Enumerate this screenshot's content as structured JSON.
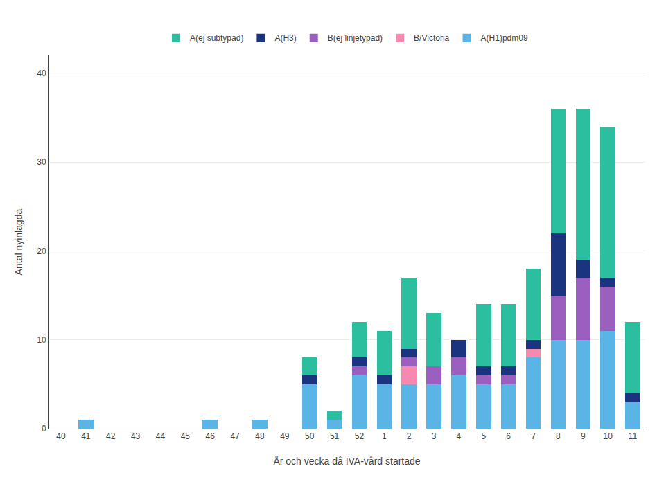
{
  "chart_data": {
    "type": "bar",
    "stacked": true,
    "categories": [
      "40",
      "41",
      "42",
      "43",
      "44",
      "45",
      "46",
      "47",
      "48",
      "49",
      "50",
      "51",
      "52",
      "1",
      "2",
      "3",
      "4",
      "5",
      "6",
      "7",
      "8",
      "9",
      "10",
      "11"
    ],
    "series": [
      {
        "name": "A(H1)pdm09",
        "color": "#5ab4e5",
        "values": [
          0,
          1,
          0,
          0,
          0,
          0,
          1,
          0,
          1,
          0,
          5,
          1,
          6,
          5,
          5,
          5,
          6,
          5,
          5,
          8,
          10,
          10,
          11,
          3
        ]
      },
      {
        "name": "B/Victoria",
        "color": "#f589b0",
        "values": [
          0,
          0,
          0,
          0,
          0,
          0,
          0,
          0,
          0,
          0,
          0,
          0,
          0,
          0,
          2,
          0,
          0,
          0,
          0,
          1,
          0,
          0,
          0,
          0
        ]
      },
      {
        "name": "B(ej linjetypad)",
        "color": "#9b5fc0",
        "values": [
          0,
          0,
          0,
          0,
          0,
          0,
          0,
          0,
          0,
          0,
          0,
          0,
          1,
          0,
          1,
          2,
          2,
          1,
          1,
          0,
          5,
          7,
          5,
          0
        ]
      },
      {
        "name": "A(H3)",
        "color": "#1a3480",
        "values": [
          0,
          0,
          0,
          0,
          0,
          0,
          0,
          0,
          0,
          0,
          1,
          0,
          1,
          1,
          1,
          0,
          2,
          1,
          1,
          1,
          7,
          2,
          1,
          1
        ]
      },
      {
        "name": "A(ej subtypad)",
        "color": "#2bbfa0",
        "values": [
          0,
          0,
          0,
          0,
          0,
          0,
          0,
          0,
          0,
          0,
          2,
          1,
          4,
          5,
          8,
          6,
          0,
          7,
          7,
          8,
          14,
          17,
          17,
          8
        ]
      }
    ],
    "xlabel": "År och vecka då IVA-vård startade",
    "ylabel": "Antal nyinlagda",
    "ylim": [
      0,
      42
    ],
    "yticks": [
      0,
      10,
      20,
      30,
      40
    ],
    "grid": true,
    "legend": "top"
  }
}
